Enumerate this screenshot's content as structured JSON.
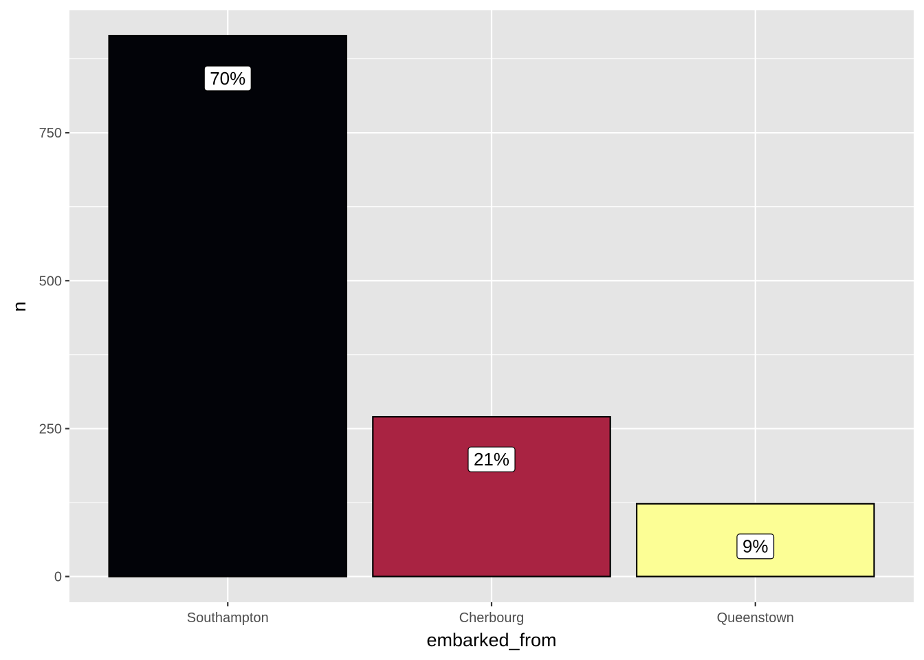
{
  "chart_data": {
    "type": "bar",
    "title": "",
    "xlabel": "embarked_from",
    "ylabel": "n",
    "categories": [
      "Southampton",
      "Cherbourg",
      "Queenstown"
    ],
    "values": [
      914,
      270,
      123
    ],
    "labels": [
      "70%",
      "21%",
      "9%"
    ],
    "colors": [
      "#020308",
      "#A92342",
      "#FCFE95"
    ],
    "ylim": [
      -43.5,
      957
    ],
    "yticks": [
      0,
      250,
      500,
      750
    ],
    "grid": true,
    "legend": "none",
    "panel_background": "#E5E5E5",
    "grid_color": "#FFFFFF"
  }
}
